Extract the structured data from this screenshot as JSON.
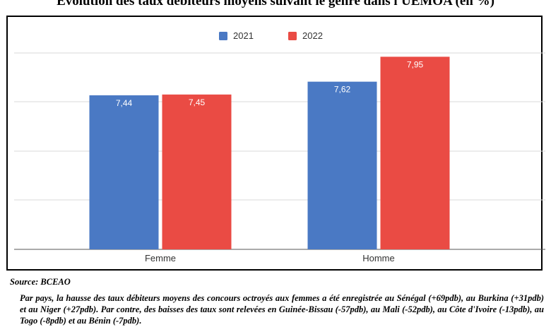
{
  "page": {
    "title": "Evolution des taux débiteurs moyens suivant le genre dans l'UEMOA (en %)",
    "source": "Source: BCEAO",
    "paragraph": "Par pays, la hausse des taux débiteurs moyens des concours octroyés aux femmes a été enregistrée au Sénégal (+69pdb), au Burkina (+31pdb) et au Niger (+27pdb). Par contre, des baisses des taux sont relevées en Guinée-Bissau (-57pdb), au Mali (-52pdb), au Côte d'Ivoire (-13pdb), au Togo (-8pdb) et au Bénin (-7pdb)."
  },
  "chart_data": {
    "type": "bar",
    "title": "Evolution des taux débiteurs moyens suivant le genre dans l'UEMOA (en %)",
    "categories": [
      "Femme",
      "Homme"
    ],
    "series": [
      {
        "name": "2021",
        "values": [
          7.44,
          7.62
        ],
        "labels": [
          "7,44",
          "7,62"
        ],
        "color": "#4a79c4"
      },
      {
        "name": "2022",
        "values": [
          7.45,
          7.95
        ],
        "labels": [
          "7,45",
          "7,95"
        ],
        "color": "#ea4b44"
      }
    ],
    "ylim": [
      5.4,
      8.0
    ],
    "grid": true,
    "legend": "top-center",
    "xlabel": "",
    "ylabel": ""
  }
}
